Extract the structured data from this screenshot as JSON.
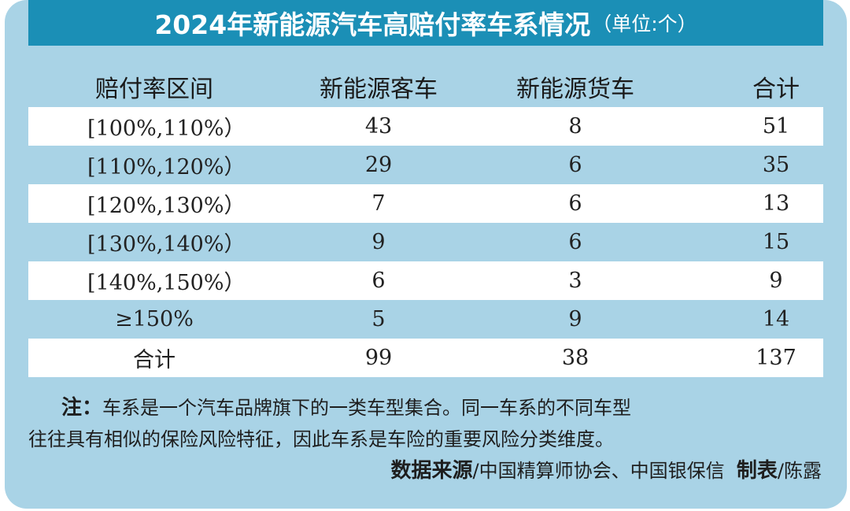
{
  "title": {
    "main": "2024年新能源汽车高赔付率车系情况",
    "unit": "（单位:个）"
  },
  "chart_data": {
    "type": "table",
    "columns": [
      "赔付率区间",
      "新能源客车",
      "新能源货车",
      "合计"
    ],
    "rows": [
      [
        "[100%,110%）",
        "43",
        "8",
        "51"
      ],
      [
        "[110%,120%）",
        "29",
        "6",
        "35"
      ],
      [
        "[120%,130%）",
        "7",
        "6",
        "13"
      ],
      [
        "[130%,140%）",
        "9",
        "6",
        "15"
      ],
      [
        "[140%,150%）",
        "6",
        "3",
        "9"
      ],
      [
        "≥150%",
        "5",
        "9",
        "14"
      ],
      [
        "合计",
        "99",
        "38",
        "137"
      ]
    ]
  },
  "note": {
    "label": "注：",
    "line1": "车系是一个汽车品牌旗下的一类车型集合。同一车系的不同车型",
    "line2": "往往具有相似的保险风险特征，因此车系是车险的重要风险分类维度。"
  },
  "source": {
    "label": "数据来源",
    "text": "/中国精算师协会、中国银保信",
    "maker_label": "制表",
    "maker": "/陈露"
  },
  "colors": {
    "background": "#a9d3e6",
    "title_bar": "#1b8fb6",
    "row_white": "#ffffff"
  }
}
